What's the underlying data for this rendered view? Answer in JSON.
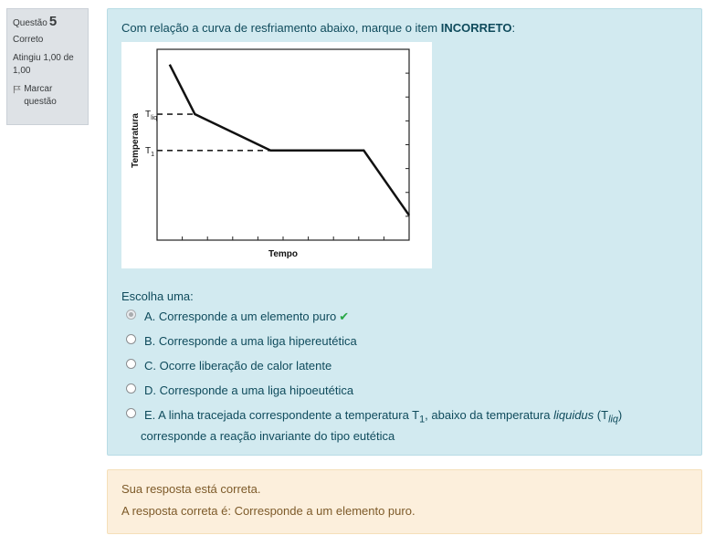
{
  "info": {
    "question_label": "Questão",
    "question_number": "5",
    "state": "Correto",
    "grade": "Atingiu 1,00 de 1,00",
    "flag_label": "Marcar questão"
  },
  "question": {
    "text_before": "Com relação a curva de resfriamento abaixo, marque o item ",
    "text_bold": "INCORRETO",
    "text_after": ":",
    "prompt": "Escolha uma:"
  },
  "chart_data": {
    "type": "line",
    "title": "",
    "xlabel": "Tempo",
    "ylabel": "Temperatura",
    "x_ticks": 10,
    "y_ticks": 8,
    "points": [
      [
        0.05,
        0.92
      ],
      [
        0.15,
        0.66
      ],
      [
        0.45,
        0.47
      ],
      [
        0.82,
        0.47
      ],
      [
        1.0,
        0.13
      ]
    ],
    "reference_lines": [
      {
        "label": "T",
        "sub": "liq",
        "y": 0.66
      },
      {
        "label": "T",
        "sub": "1",
        "y": 0.47
      }
    ]
  },
  "options": [
    {
      "text": "A. Corresponde a um elemento puro",
      "selected": true,
      "correct_mark": "✔"
    },
    {
      "text": "B. Corresponde a uma liga hipereutética",
      "selected": false
    },
    {
      "text": "C. Ocorre liberação de calor latente",
      "selected": false
    },
    {
      "text": "D. Corresponde a uma liga hipoeutética",
      "selected": false
    },
    {
      "text_before": "E. A linha tracejada correspondente a temperatura T",
      "sub1": "1",
      "text_mid": ", abaixo da temperatura ",
      "italic": "liquidus",
      "paren_open": " (T",
      "sub2": "liq",
      "paren_close": ")",
      "text_line2": "corresponde a reação invariante do tipo eutética",
      "selected": false
    }
  ],
  "outcome": {
    "line1": "Sua resposta está correta.",
    "line2": "A resposta correta é: Corresponde a um elemento puro."
  }
}
